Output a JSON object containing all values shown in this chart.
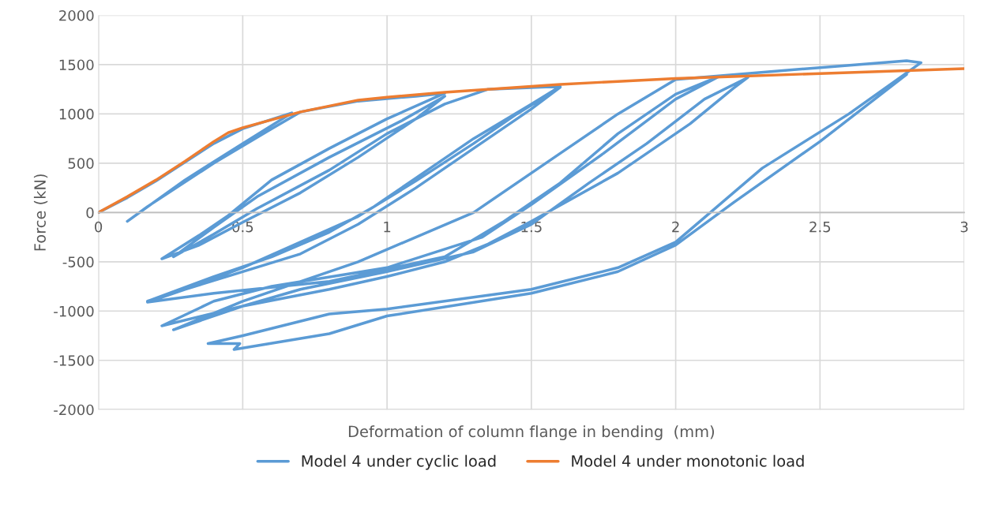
{
  "chart_data": {
    "type": "line",
    "xlabel": "Deformation of column flange in bending  (mm)",
    "ylabel": "Force (kN)",
    "xlim": [
      0,
      3
    ],
    "xticks": [
      0,
      0.5,
      1,
      1.5,
      2,
      2.5,
      3
    ],
    "ylim": [
      -2000,
      2000
    ],
    "yticks": [
      -2000,
      -1500,
      -1000,
      -500,
      0,
      500,
      1000,
      1500,
      2000
    ],
    "grid": true,
    "legend": "bottom",
    "marker": "none",
    "line_style": "solid",
    "series": [
      {
        "name": "Model 4 under cyclic load",
        "color": "#5b9bd5",
        "x": [
          0,
          0.1,
          0.2,
          0.3,
          0.4,
          0.5,
          0.67,
          0.5,
          0.3,
          0.1,
          0.17,
          0.4,
          0.6,
          0.7,
          0.9,
          1.1,
          1.2,
          1.0,
          0.8,
          0.6,
          0.45,
          0.35,
          0.22,
          0.35,
          0.5,
          0.7,
          0.9,
          1.1,
          1.2,
          1.05,
          0.8,
          0.55,
          0.4,
          0.26,
          0.4,
          0.55,
          0.8,
          1.0,
          1.2,
          1.35,
          1.6,
          1.5,
          1.3,
          1.1,
          0.95,
          0.8,
          0.6,
          0.4,
          0.17,
          0.3,
          0.5,
          0.7,
          0.9,
          1.1,
          1.3,
          1.45,
          1.6,
          1.5,
          1.3,
          1.1,
          0.9,
          0.7,
          0.5,
          0.3,
          0.17,
          0.4,
          0.8,
          1.2,
          1.4,
          1.6,
          1.8,
          2.0,
          2.15,
          2.0,
          1.75,
          1.5,
          1.33,
          1.0,
          0.6,
          0.4,
          0.22,
          0.5,
          0.8,
          1.0,
          1.2,
          1.35,
          1.5,
          1.8,
          2.05,
          2.2,
          2.25,
          2.1,
          1.9,
          1.7,
          1.5,
          1.3,
          1.0,
          0.7,
          0.5,
          0.26,
          0.5,
          0.9,
          1.3,
          1.6,
          1.8,
          2.0,
          2.5,
          2.8,
          2.85,
          2.6,
          2.3,
          2.1,
          2.0,
          1.8,
          1.5,
          1.0,
          0.8,
          0.5,
          0.38,
          0.49,
          0.47,
          0.8,
          1.0,
          1.5,
          1.8,
          2.0,
          2.2,
          2.5,
          2.8
        ],
        "values": [
          0,
          150,
          320,
          510,
          700,
          850,
          1010,
          700,
          330,
          -90,
          60,
          500,
          850,
          1020,
          1130,
          1180,
          1210,
          950,
          650,
          330,
          -30,
          -230,
          -470,
          -330,
          -100,
          200,
          560,
          950,
          1180,
          930,
          560,
          160,
          -150,
          -450,
          -220,
          40,
          430,
          800,
          1100,
          1250,
          1280,
          1100,
          750,
          350,
          50,
          -200,
          -450,
          -650,
          -900,
          -780,
          -560,
          -300,
          -40,
          320,
          700,
          1000,
          1270,
          1050,
          650,
          250,
          -120,
          -420,
          -600,
          -780,
          -910,
          -820,
          -700,
          -450,
          -100,
          300,
          800,
          1200,
          1380,
          1150,
          600,
          80,
          -250,
          -560,
          -750,
          -900,
          -1150,
          -950,
          -780,
          -650,
          -500,
          -320,
          -90,
          400,
          900,
          1260,
          1370,
          1150,
          700,
          300,
          -120,
          -400,
          -600,
          -780,
          -950,
          -1190,
          -900,
          -500,
          0,
          600,
          1000,
          1350,
          1470,
          1540,
          1520,
          1000,
          450,
          -50,
          -300,
          -560,
          -780,
          -980,
          -1030,
          -1250,
          -1330,
          -1330,
          -1390,
          -1230,
          -1050,
          -820,
          -600,
          -330,
          100,
          720,
          1400
        ]
      },
      {
        "name": "Model 4 under monotonic load",
        "color": "#ed7d31",
        "x": [
          0,
          0.1,
          0.2,
          0.3,
          0.4,
          0.45,
          0.5,
          0.6,
          0.7,
          0.8,
          0.9,
          1.0,
          1.2,
          1.4,
          1.6,
          1.8,
          2.0,
          2.2,
          2.5,
          2.8,
          3.0
        ],
        "values": [
          0,
          160,
          330,
          520,
          720,
          810,
          860,
          940,
          1020,
          1080,
          1140,
          1170,
          1220,
          1260,
          1300,
          1330,
          1360,
          1380,
          1410,
          1440,
          1460
        ]
      }
    ]
  }
}
